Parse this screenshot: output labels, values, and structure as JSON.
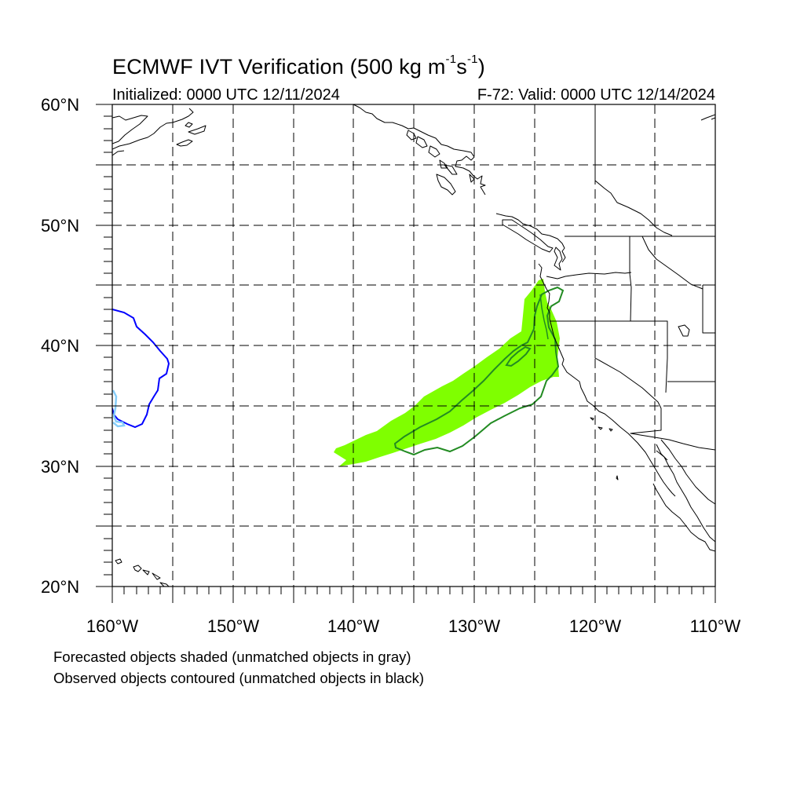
{
  "title": {
    "main": "ECMWF IVT Verification (500 kg m",
    "exp1": "-1",
    "mid": "s",
    "exp2": "-1",
    "end": ")"
  },
  "initialized": "Initialized: 0000 UTC 12/11/2024",
  "valid": "F-72: Valid: 0000 UTC 12/14/2024",
  "lat_labels": [
    "60°N",
    "50°N",
    "40°N",
    "30°N",
    "20°N"
  ],
  "lon_labels": [
    "160°W",
    "150°W",
    "140°W",
    "130°W",
    "120°W",
    "110°W"
  ],
  "notes": {
    "forecast": "Forecasted objects shaded (unmatched objects in gray)",
    "observed": "Observed objects contoured (unmatched objects in black)"
  },
  "colors": {
    "forecast_shade": "#7fff00",
    "observed_contour": "#228b22",
    "unmatched_blue": "#0000ff",
    "unmatched_lightblue": "#87cefa",
    "coastline": "#000000",
    "grid": "#000000"
  },
  "map_extent": {
    "lon_min": -160,
    "lon_max": -110,
    "lat_min": 20,
    "lat_max": 60
  }
}
